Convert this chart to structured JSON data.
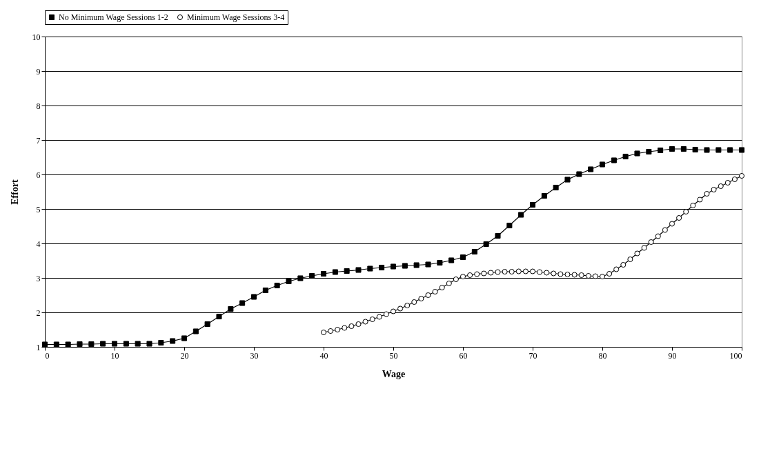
{
  "chart_data": {
    "type": "line",
    "xlabel": "Wage",
    "ylabel": "Effort",
    "xlim": [
      0,
      100
    ],
    "ylim": [
      1,
      10
    ],
    "xticks": [
      0,
      10,
      20,
      30,
      40,
      50,
      60,
      70,
      80,
      90,
      100
    ],
    "yticks": [
      1,
      2,
      3,
      4,
      5,
      6,
      7,
      8,
      9,
      10
    ],
    "grid": "y",
    "legend": "top",
    "line_style": "solid",
    "series": [
      {
        "name": "No Minimum Wage Sessions 1-2",
        "color": "#000000",
        "marker": "square",
        "x": [
          0,
          1.67,
          3.33,
          5,
          6.67,
          8.33,
          10,
          11.67,
          13.33,
          15,
          16.67,
          18.33,
          20,
          21.67,
          23.33,
          25,
          26.67,
          28.33,
          30,
          31.67,
          33.33,
          35,
          36.67,
          38.33,
          40,
          41.67,
          43.33,
          45,
          46.67,
          48.33,
          50,
          51.67,
          53.33,
          55,
          56.67,
          58.33,
          60,
          61.67,
          63.33,
          65,
          66.67,
          68.33,
          70,
          71.67,
          73.33,
          75,
          76.67,
          78.33,
          80,
          81.67,
          83.33,
          85,
          86.67,
          88.33,
          90,
          91.67,
          93.33,
          95,
          96.67,
          98.33,
          100
        ],
        "values": [
          1.07,
          1.07,
          1.07,
          1.08,
          1.08,
          1.09,
          1.09,
          1.09,
          1.09,
          1.09,
          1.12,
          1.17,
          1.25,
          1.45,
          1.66,
          1.88,
          2.1,
          2.27,
          2.45,
          2.64,
          2.78,
          2.9,
          2.99,
          3.06,
          3.12,
          3.17,
          3.2,
          3.23,
          3.27,
          3.3,
          3.33,
          3.35,
          3.37,
          3.39,
          3.44,
          3.51,
          3.6,
          3.76,
          3.98,
          4.22,
          4.52,
          4.83,
          5.12,
          5.38,
          5.62,
          5.85,
          6.01,
          6.15,
          6.29,
          6.41,
          6.52,
          6.61,
          6.66,
          6.7,
          6.74,
          6.74,
          6.72,
          6.71,
          6.71,
          6.71,
          6.71
        ]
      },
      {
        "name": "Minimum Wage Sessions 3-4",
        "color": "#000000",
        "marker": "circle",
        "x": [
          40,
          41,
          42,
          43,
          44,
          45,
          46,
          47,
          48,
          49,
          50,
          51,
          52,
          53,
          54,
          55,
          56,
          57,
          58,
          59,
          60,
          61,
          62,
          63,
          64,
          65,
          66,
          67,
          68,
          69,
          70,
          71,
          72,
          73,
          74,
          75,
          76,
          77,
          78,
          79,
          80,
          81,
          82,
          83,
          84,
          85,
          86,
          87,
          88,
          89,
          90,
          91,
          92,
          93,
          94,
          95,
          96,
          97,
          98,
          99,
          100
        ],
        "values": [
          1.42,
          1.46,
          1.5,
          1.55,
          1.6,
          1.66,
          1.73,
          1.8,
          1.87,
          1.95,
          2.03,
          2.11,
          2.2,
          2.3,
          2.4,
          2.5,
          2.6,
          2.72,
          2.84,
          2.96,
          3.04,
          3.08,
          3.11,
          3.13,
          3.15,
          3.17,
          3.18,
          3.18,
          3.19,
          3.19,
          3.19,
          3.17,
          3.15,
          3.13,
          3.11,
          3.1,
          3.09,
          3.08,
          3.06,
          3.05,
          3.04,
          3.12,
          3.25,
          3.38,
          3.54,
          3.71,
          3.87,
          4.04,
          4.21,
          4.39,
          4.57,
          4.74,
          4.92,
          5.1,
          5.27,
          5.44,
          5.56,
          5.66,
          5.76,
          5.86,
          5.96
        ]
      }
    ]
  }
}
